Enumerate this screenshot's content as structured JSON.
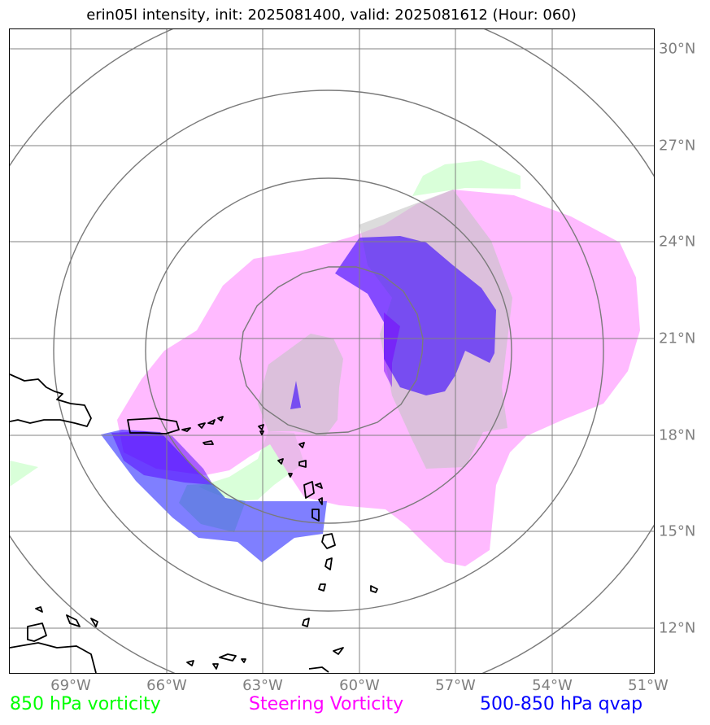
{
  "title": "erin05l intensity, init: 2025081400, valid: 2025081612 (Hour: 060)",
  "x_ticks": [
    "69°W",
    "66°W",
    "63°W",
    "60°W",
    "57°W",
    "54°W",
    "51°W"
  ],
  "y_ticks": [
    "30°N",
    "27°N",
    "24°N",
    "21°N",
    "18°N",
    "15°N",
    "12°N"
  ],
  "legend": {
    "vorticity_850": {
      "label": "850 hPa vorticity",
      "color": "#00ff00"
    },
    "steering_vorticity": {
      "label": "Steering Vorticity",
      "color": "#ff00ff"
    },
    "qvap_500_850": {
      "label": "500-850 hPa qvap",
      "color": "#0000ff"
    }
  },
  "map": {
    "extent": {
      "lon_min": -70.9,
      "lon_max": -50.9,
      "lat_min": 10.7,
      "lat_max": 30.7
    },
    "gridlines": true,
    "range_rings": true
  }
}
